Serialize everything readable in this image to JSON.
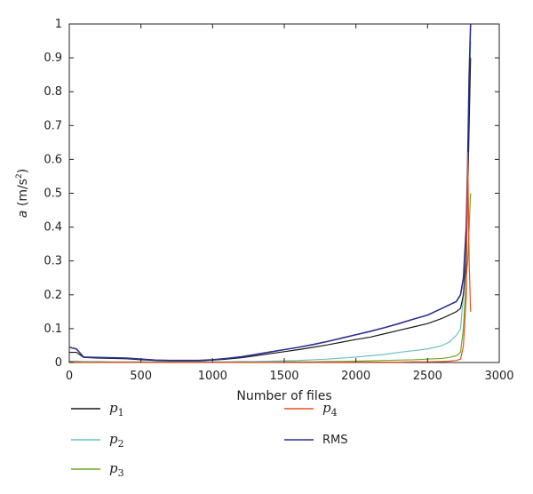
{
  "chart_data": {
    "type": "line",
    "xlabel": "Number of files",
    "ylabel": "a (m/s²)",
    "ylabel_parts": {
      "italic": "a",
      "rest": " (m/s",
      "sup": "2",
      "close": ")"
    },
    "xlim": [
      0,
      3000
    ],
    "ylim": [
      0,
      1
    ],
    "x_ticks": [
      "0",
      "500",
      "1000",
      "1500",
      "2000",
      "2500",
      "3000"
    ],
    "y_ticks": [
      "0",
      "0.1",
      "0.2",
      "0.3",
      "0.4",
      "0.5",
      "0.6",
      "0.7",
      "0.8",
      "0.9",
      "1"
    ],
    "grid": false,
    "legend_position": "bottom",
    "x": [
      0,
      50,
      100,
      200,
      300,
      400,
      500,
      600,
      700,
      800,
      900,
      1000,
      1100,
      1200,
      1300,
      1400,
      1500,
      1600,
      1700,
      1800,
      1900,
      2000,
      2100,
      2200,
      2300,
      2400,
      2500,
      2600,
      2650,
      2700,
      2730,
      2750,
      2770,
      2780,
      2790,
      2800
    ],
    "series": [
      {
        "name": "p1",
        "label_main": "p",
        "label_sub": "1",
        "color": "#1a1a1a",
        "values": [
          0.03,
          0.03,
          0.015,
          0.013,
          0.012,
          0.011,
          0.008,
          0.006,
          0.005,
          0.005,
          0.005,
          0.007,
          0.01,
          0.014,
          0.02,
          0.026,
          0.032,
          0.038,
          0.045,
          0.052,
          0.06,
          0.068,
          0.075,
          0.085,
          0.095,
          0.105,
          0.115,
          0.13,
          0.14,
          0.15,
          0.16,
          0.2,
          0.3,
          0.5,
          0.7,
          0.9
        ]
      },
      {
        "name": "p2",
        "label_main": "p",
        "label_sub": "2",
        "color": "#6fc0c0",
        "values": [
          0.004,
          0.004,
          0.003,
          0.003,
          0.002,
          0.002,
          0.002,
          0.002,
          0.002,
          0.002,
          0.002,
          0.002,
          0.002,
          0.003,
          0.003,
          0.004,
          0.005,
          0.006,
          0.008,
          0.01,
          0.013,
          0.016,
          0.02,
          0.024,
          0.03,
          0.035,
          0.04,
          0.05,
          0.06,
          0.08,
          0.1,
          0.2,
          0.35,
          0.55,
          0.75,
          0.95
        ]
      },
      {
        "name": "p3",
        "label_main": "p",
        "label_sub": "3",
        "color": "#6aaa2a",
        "values": [
          0.002,
          0.002,
          0.001,
          0.001,
          0.001,
          0.001,
          0.001,
          0.001,
          0.001,
          0.001,
          0.001,
          0.001,
          0.001,
          0.001,
          0.001,
          0.001,
          0.002,
          0.002,
          0.002,
          0.003,
          0.003,
          0.004,
          0.005,
          0.006,
          0.007,
          0.008,
          0.01,
          0.012,
          0.015,
          0.02,
          0.03,
          0.1,
          0.25,
          0.3,
          0.4,
          0.5
        ]
      },
      {
        "name": "p4",
        "label_main": "p",
        "label_sub": "4",
        "color": "#e8501e",
        "values": [
          0.001,
          0.001,
          0.001,
          0.001,
          0.001,
          0.001,
          0.001,
          0.001,
          0.001,
          0.001,
          0.001,
          0.001,
          0.001,
          0.001,
          0.001,
          0.001,
          0.001,
          0.001,
          0.001,
          0.001,
          0.001,
          0.001,
          0.001,
          0.001,
          0.001,
          0.002,
          0.002,
          0.003,
          0.004,
          0.006,
          0.01,
          0.05,
          0.2,
          0.62,
          0.3,
          0.15
        ]
      },
      {
        "name": "RMS",
        "label_main": "RMS",
        "label_sub": "",
        "color": "#2b2f8f",
        "values": [
          0.045,
          0.04,
          0.016,
          0.015,
          0.014,
          0.013,
          0.01,
          0.007,
          0.006,
          0.006,
          0.006,
          0.008,
          0.012,
          0.017,
          0.024,
          0.031,
          0.038,
          0.045,
          0.053,
          0.062,
          0.072,
          0.082,
          0.092,
          0.103,
          0.115,
          0.128,
          0.14,
          0.16,
          0.17,
          0.18,
          0.2,
          0.25,
          0.4,
          0.6,
          0.85,
          1.0
        ]
      }
    ]
  }
}
